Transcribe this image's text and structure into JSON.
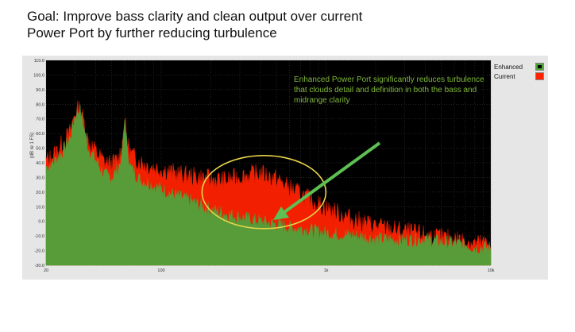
{
  "slide": {
    "title_line1": "Goal: Improve bass clarity and clean output over current",
    "title_line2": "Power Port by further reducing turbulence"
  },
  "annotation": "Enhanced Power Port significantly reduces turbulence that clouds detail and definition in both the bass and midrange clarity",
  "colors": {
    "enhanced": "#4fa33b",
    "current": "#ff2200",
    "plot_bg": "#000000",
    "ellipse": "#e8d44a",
    "arrow": "#5cc052",
    "annotation_text": "#7fb83a"
  },
  "chart_data": {
    "type": "area",
    "title": "",
    "xlabel": "",
    "ylabel": "(dB re 1 FS)",
    "x_scale": "log",
    "xlim": [
      20,
      10000
    ],
    "ylim": [
      -30,
      110
    ],
    "grid": true,
    "legend_position": "top-right",
    "x_ticks": [
      {
        "value": 20,
        "label": "20"
      },
      {
        "value": 100,
        "label": "100"
      },
      {
        "value": 1000,
        "label": "1k"
      },
      {
        "value": 10000,
        "label": "10k"
      }
    ],
    "y_ticks": [
      -30,
      -20,
      -10,
      0,
      10,
      20,
      30,
      40,
      50,
      60,
      70,
      80,
      90,
      100,
      110
    ],
    "y_tick_labels": [
      "-30.0",
      "-20.0",
      "-10.0",
      "0.0",
      "10.0",
      "20.0",
      "30.0",
      "40.0",
      "50.0",
      "60.0",
      "70.0",
      "80.0",
      "90.0",
      "100.0",
      "110.0"
    ],
    "series": [
      {
        "name": "Enhanced",
        "color": "#4fa33b",
        "x": [
          20,
          22,
          25,
          28,
          30,
          32,
          34,
          36,
          40,
          45,
          50,
          55,
          58,
          60,
          62,
          65,
          70,
          75,
          80,
          90,
          100,
          120,
          150,
          180,
          200,
          250,
          300,
          400,
          500,
          600,
          700,
          800,
          1000,
          1500,
          2000,
          3000,
          4000,
          5000,
          6000,
          7000,
          8000,
          10000
        ],
        "y": [
          35,
          38,
          45,
          55,
          70,
          75,
          62,
          48,
          40,
          30,
          28,
          34,
          45,
          68,
          50,
          35,
          30,
          26,
          25,
          22,
          20,
          16,
          12,
          8,
          6,
          3,
          1,
          -2,
          -4,
          -6,
          -7,
          -8,
          -10,
          -12,
          -14,
          -15,
          -14,
          -16,
          -17,
          -18,
          -20,
          -20
        ]
      },
      {
        "name": "Current",
        "color": "#ff2200",
        "x": [
          20,
          22,
          25,
          28,
          30,
          32,
          34,
          36,
          40,
          45,
          50,
          55,
          58,
          60,
          62,
          65,
          70,
          75,
          80,
          90,
          100,
          120,
          150,
          180,
          200,
          250,
          300,
          400,
          500,
          600,
          700,
          800,
          1000,
          1500,
          2000,
          3000,
          4000,
          5000,
          6000,
          7000,
          8000,
          10000
        ],
        "y": [
          38,
          42,
          50,
          58,
          72,
          74,
          65,
          52,
          45,
          38,
          36,
          40,
          50,
          66,
          52,
          44,
          40,
          38,
          36,
          34,
          33,
          30,
          28,
          27,
          26,
          25,
          28,
          30,
          26,
          20,
          16,
          12,
          6,
          -2,
          -6,
          -10,
          -12,
          -14,
          -15,
          -16,
          -18,
          -18
        ]
      }
    ]
  }
}
